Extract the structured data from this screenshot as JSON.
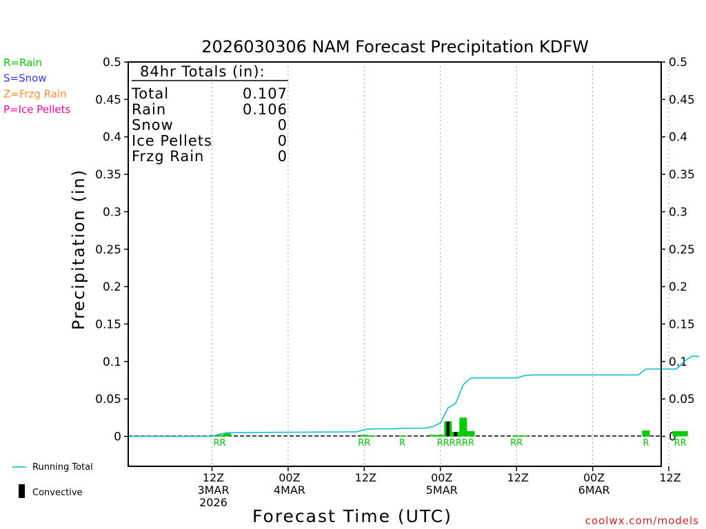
{
  "chart_data": {
    "type": "bar",
    "title": "2026030306 NAM Forecast Precipitation KDFW",
    "xlabel": "Forecast Time (UTC)",
    "ylabel": "Precipitation (in)",
    "ylim": [
      -0.04,
      0.5
    ],
    "yticks": [
      "0.5",
      "0.45",
      "0.4",
      "0.35",
      "0.3",
      "0.25",
      "0.2",
      "0.15",
      "0.1",
      "0.05",
      "0"
    ],
    "xlim_hours": [
      -5,
      65
    ],
    "grid": "vertical dotted at 12-hour intervals",
    "x_ticks": [
      {
        "hour": 6,
        "lines": [
          "12Z",
          "3MAR",
          "2026"
        ]
      },
      {
        "hour": 16,
        "lines": [
          "00Z",
          "4MAR"
        ]
      },
      {
        "hour": 26,
        "lines": [
          "12Z"
        ]
      },
      {
        "hour": 36,
        "lines": [
          "00Z",
          "5MAR"
        ]
      },
      {
        "hour": 46,
        "lines": [
          "12Z"
        ]
      },
      {
        "hour": 56,
        "lines": [
          "00Z",
          "6MAR"
        ]
      },
      {
        "hour": 66,
        "lines": [
          "12Z"
        ]
      }
    ],
    "legend": {
      "ptypes": [
        {
          "label": "R=Rain",
          "color": "#00cc00"
        },
        {
          "label": "S=Snow",
          "color": "#3333ff"
        },
        {
          "label": "Z=Frzg Rain",
          "color": "#ff8c32"
        },
        {
          "label": "P=Ice Pellets",
          "color": "#ff00a0"
        }
      ],
      "running_total_label": "Running Total",
      "convective_label": "Convective"
    },
    "totals": {
      "header": "84hr Totals (in):",
      "rows": [
        {
          "label": "Total",
          "value": "0.107"
        },
        {
          "label": "Rain",
          "value": "0.106"
        },
        {
          "label": "Snow",
          "value": "0"
        },
        {
          "label": "Ice Pellets",
          "value": "0"
        },
        {
          "label": "Frzg Rain",
          "value": "0"
        }
      ]
    },
    "series": [
      {
        "name": "Hourly precipitation (Rain)",
        "color": "#00cc00",
        "points": [
          {
            "hour": 7,
            "value": 0.002
          },
          {
            "hour": 8,
            "value": 0.004
          },
          {
            "hour": 26,
            "value": 0.002
          },
          {
            "hour": 27,
            "value": 0.001
          },
          {
            "hour": 31,
            "value": 0.001
          },
          {
            "hour": 35,
            "value": 0.002
          },
          {
            "hour": 36,
            "value": 0.002
          },
          {
            "hour": 37,
            "value": 0.02
          },
          {
            "hour": 38,
            "value": 0.006
          },
          {
            "hour": 39,
            "value": 0.025
          },
          {
            "hour": 40,
            "value": 0.007
          },
          {
            "hour": 46,
            "value": 0.001
          },
          {
            "hour": 47,
            "value": 0.001
          },
          {
            "hour": 63,
            "value": 0.008
          },
          {
            "hour": 67,
            "value": 0.007
          },
          {
            "hour": 68,
            "value": 0.007
          }
        ]
      },
      {
        "name": "Convective",
        "color": "#000000",
        "points": [
          {
            "hour": 37,
            "value": 0.02
          },
          {
            "hour": 38,
            "value": 0.006
          }
        ]
      },
      {
        "name": "Running Total",
        "color": "#00bcd4",
        "points": [
          {
            "hour": -5,
            "value": 0
          },
          {
            "hour": 6,
            "value": 0
          },
          {
            "hour": 7,
            "value": 0.003
          },
          {
            "hour": 8,
            "value": 0.005
          },
          {
            "hour": 25,
            "value": 0.006
          },
          {
            "hour": 26,
            "value": 0.009
          },
          {
            "hour": 27,
            "value": 0.01
          },
          {
            "hour": 30,
            "value": 0.01
          },
          {
            "hour": 31,
            "value": 0.011
          },
          {
            "hour": 34,
            "value": 0.011
          },
          {
            "hour": 35,
            "value": 0.013
          },
          {
            "hour": 36,
            "value": 0.018
          },
          {
            "hour": 37,
            "value": 0.038
          },
          {
            "hour": 38,
            "value": 0.044
          },
          {
            "hour": 39,
            "value": 0.069
          },
          {
            "hour": 40,
            "value": 0.078
          },
          {
            "hour": 46,
            "value": 0.078
          },
          {
            "hour": 47,
            "value": 0.081
          },
          {
            "hour": 48,
            "value": 0.082
          },
          {
            "hour": 62,
            "value": 0.082
          },
          {
            "hour": 63,
            "value": 0.09
          },
          {
            "hour": 67,
            "value": 0.09
          },
          {
            "hour": 68,
            "value": 0.1
          },
          {
            "hour": 69,
            "value": 0.107
          },
          {
            "hour": 70,
            "value": 0.107
          }
        ]
      }
    ],
    "ptype_markers": [
      {
        "hour": 7,
        "text": "RR"
      },
      {
        "hour": 26,
        "text": "RR"
      },
      {
        "hour": 31,
        "text": "R"
      },
      {
        "hour": 38,
        "text": "RRRRRR"
      },
      {
        "hour": 46,
        "text": "RR"
      },
      {
        "hour": 63,
        "text": "R"
      },
      {
        "hour": 67.5,
        "text": "RR"
      }
    ],
    "credit": "coolwx.com/models"
  }
}
